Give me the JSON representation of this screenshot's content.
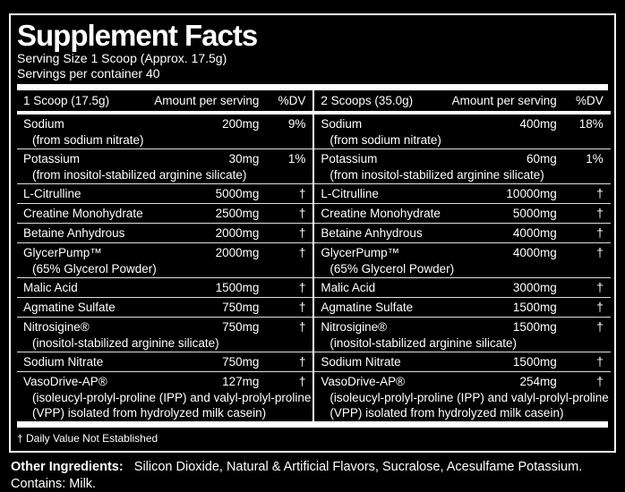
{
  "colors": {
    "background": "#000000",
    "text": "#ffffff",
    "border": "#ffffff",
    "separator": "#dedede"
  },
  "title": "Supplement Facts",
  "serving_size_line": "Serving Size 1 Scoop (Approx. 17.5g)",
  "servings_line": "Servings per container 40",
  "columns": [
    {
      "scoop_label": "1 Scoop (17.5g)",
      "amount_label": "Amount per serving",
      "dv_label": "%DV"
    },
    {
      "scoop_label": "2 Scoops (35.0g)",
      "amount_label": "Amount per serving",
      "dv_label": "%DV"
    }
  ],
  "rows": [
    {
      "name": "Sodium",
      "subs": [
        "(from sodium nitrate)"
      ],
      "serv1": {
        "amount": "200mg",
        "dv": "9%"
      },
      "serv2": {
        "amount": "400mg",
        "dv": "18%"
      }
    },
    {
      "name": "Potassium",
      "subs": [
        "(from inositol-stabilized arginine silicate)"
      ],
      "serv1": {
        "amount": "30mg",
        "dv": "1%"
      },
      "serv2": {
        "amount": "60mg",
        "dv": "1%"
      }
    },
    {
      "name": "L-Citrulline",
      "subs": [],
      "serv1": {
        "amount": "5000mg",
        "dv": "†"
      },
      "serv2": {
        "amount": "10000mg",
        "dv": "†"
      }
    },
    {
      "name": "Creatine Monohydrate",
      "subs": [],
      "serv1": {
        "amount": "2500mg",
        "dv": "†"
      },
      "serv2": {
        "amount": "5000mg",
        "dv": "†"
      }
    },
    {
      "name": "Betaine Anhydrous",
      "subs": [],
      "serv1": {
        "amount": "2000mg",
        "dv": "†"
      },
      "serv2": {
        "amount": "4000mg",
        "dv": "†"
      }
    },
    {
      "name": "GlycerPump™",
      "subs": [
        "(65% Glycerol Powder)"
      ],
      "serv1": {
        "amount": "2000mg",
        "dv": "†"
      },
      "serv2": {
        "amount": "4000mg",
        "dv": "†"
      }
    },
    {
      "name": "Malic Acid",
      "subs": [],
      "serv1": {
        "amount": "1500mg",
        "dv": "†"
      },
      "serv2": {
        "amount": "3000mg",
        "dv": "†"
      }
    },
    {
      "name": "Agmatine Sulfate",
      "subs": [],
      "serv1": {
        "amount": "750mg",
        "dv": "†"
      },
      "serv2": {
        "amount": "1500mg",
        "dv": "†"
      }
    },
    {
      "name": "Nitrosigine®",
      "subs": [
        "(inositol-stabilized arginine silicate)"
      ],
      "serv1": {
        "amount": "750mg",
        "dv": "†"
      },
      "serv2": {
        "amount": "1500mg",
        "dv": "†"
      }
    },
    {
      "name": "Sodium Nitrate",
      "subs": [],
      "serv1": {
        "amount": "750mg",
        "dv": "†"
      },
      "serv2": {
        "amount": "1500mg",
        "dv": "†"
      }
    },
    {
      "name": "VasoDrive-AP®",
      "subs": [
        "(isoleucyl-prolyl-proline (IPP) and valyl-prolyl-proline",
        "(VPP) isolated from hydrolyzed milk casein)"
      ],
      "serv1": {
        "amount": "127mg",
        "dv": "†"
      },
      "serv2": {
        "amount": "254mg",
        "dv": "†"
      }
    }
  ],
  "footnote": "† Daily Value Not Established",
  "other_ingredients": {
    "label": "Other Ingredients:",
    "text": "Silicon Dioxide, Natural & Artificial Flavors, Sucralose, Acesulfame Potassium. Contains: Milk."
  }
}
